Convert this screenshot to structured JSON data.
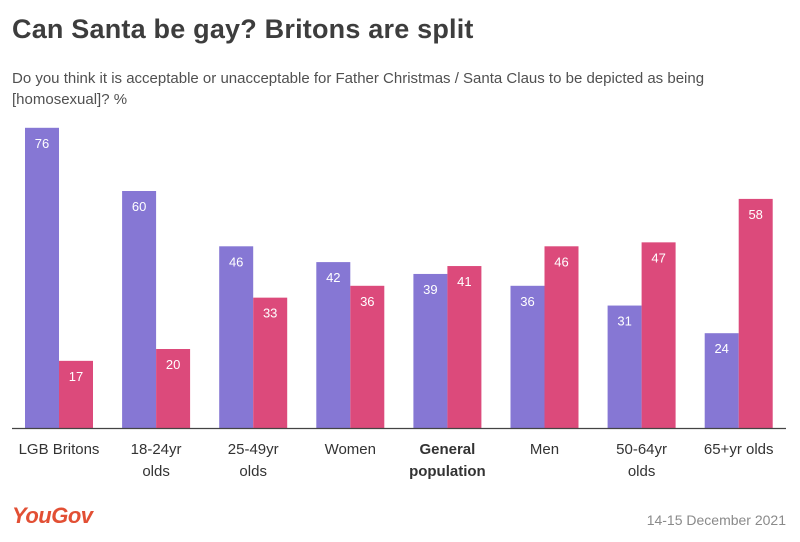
{
  "title": "Can Santa be gay? Britons are split",
  "subtitle": "Do you think it is acceptable or unacceptable for Father Christmas / Santa Claus to be depicted as being [homosexual]? %",
  "logo": "YouGov",
  "date": "14-15 December 2021",
  "colors": {
    "acceptable": "#8677d4",
    "unacceptable": "#dc4a7b",
    "axis": "#444444"
  },
  "chart_data": {
    "type": "bar",
    "categories": [
      [
        "LGB Britons"
      ],
      [
        "18-24yr",
        "olds"
      ],
      [
        "25-49yr",
        "olds"
      ],
      [
        "Women"
      ],
      [
        "General",
        "population"
      ],
      [
        "Men"
      ],
      [
        "50-64yr",
        "olds"
      ],
      [
        "65+yr olds"
      ]
    ],
    "bold_category_index": 4,
    "series": [
      {
        "values": [
          76,
          60,
          46,
          42,
          39,
          36,
          31,
          24
        ]
      },
      {
        "values": [
          17,
          20,
          33,
          36,
          41,
          46,
          47,
          58
        ]
      }
    ],
    "ylim": [
      0,
      80
    ],
    "grid": false,
    "legend": "none"
  }
}
